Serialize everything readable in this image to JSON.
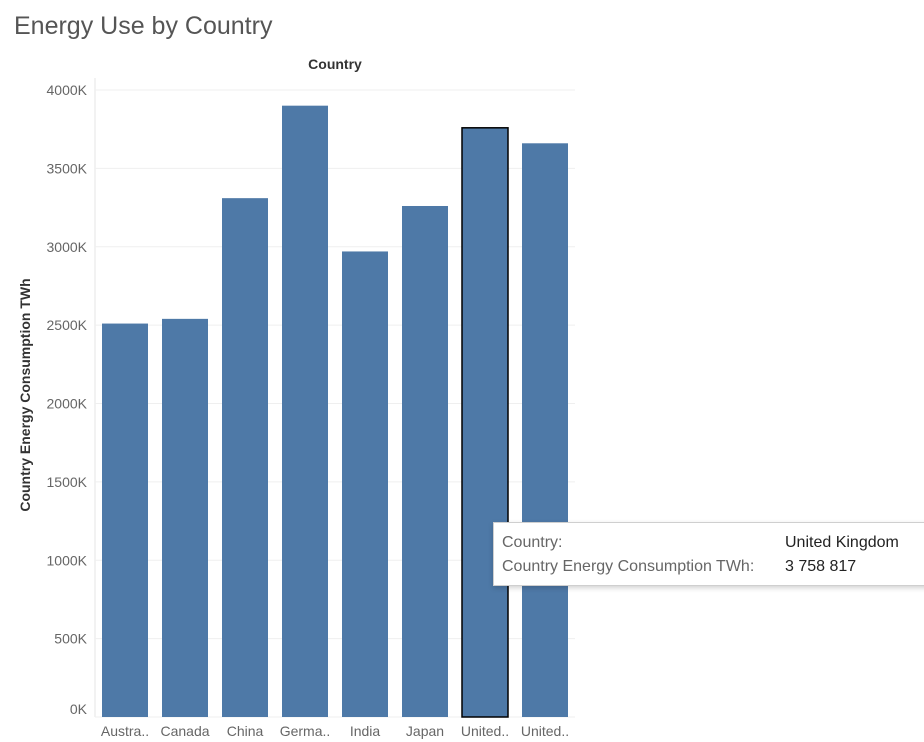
{
  "page": {
    "title": "Energy Use by Country"
  },
  "chart_data": {
    "type": "bar",
    "title": "Energy Use by Country",
    "column_header": "Country",
    "xlabel": "",
    "ylabel": "Country Energy Consumption TWh",
    "ylim": [
      0,
      4000000
    ],
    "yticks": [
      0,
      500000,
      1000000,
      1500000,
      2000000,
      2500000,
      3000000,
      3500000,
      4000000
    ],
    "ytick_labels": [
      "0K",
      "500K",
      "1000K",
      "1500K",
      "2000K",
      "2500K",
      "3000K",
      "3500K",
      "4000K"
    ],
    "categories": [
      "Australia",
      "Canada",
      "China",
      "Germany",
      "India",
      "Japan",
      "United Kingdom",
      "United States"
    ],
    "category_labels": [
      "Austra..",
      "Canada",
      "China",
      "Germa..",
      "India",
      "Japan",
      "United..",
      "United.."
    ],
    "values": [
      2510000,
      2540000,
      3310000,
      3900000,
      2970000,
      3260000,
      3758817,
      3660000
    ],
    "highlighted_category": "United Kingdom",
    "bar_color": "#4e79a7",
    "grid": true,
    "legend": "none"
  },
  "tooltip": {
    "country_label": "Country:",
    "country_value": "United Kingdom",
    "measure_label": "Country Energy Consumption TWh:",
    "measure_value": "3 758 817"
  }
}
